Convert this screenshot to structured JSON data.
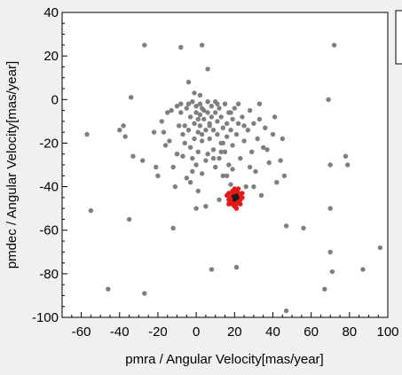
{
  "chart_data": {
    "type": "scatter",
    "title": "",
    "xlabel": "pmra / Angular Velocity[mas/year]",
    "ylabel": "pmdec / Angular Velocity[mas/year]",
    "xlim": [
      -70,
      100
    ],
    "ylim": [
      -100,
      40
    ],
    "x_ticks": [
      -60,
      -40,
      -20,
      0,
      20,
      40,
      60,
      80,
      100
    ],
    "y_ticks": [
      -100,
      -80,
      -60,
      -40,
      -20,
      0,
      20,
      40
    ],
    "grid": false,
    "legend": "top-right (partially visible, empty)",
    "colors": {
      "background": "#ffffff",
      "frame": "#f0f0f0",
      "field": "#7f7f7f",
      "member": "#e41a1a",
      "member_core": "#1a1a1a"
    },
    "series": [
      {
        "color": "#7f7f7f",
        "points": [
          [
            -57,
            -16
          ],
          [
            -55,
            -51
          ],
          [
            -46,
            -87
          ],
          [
            -40,
            -14
          ],
          [
            -38,
            -12
          ],
          [
            -37,
            -17
          ],
          [
            -35,
            -55
          ],
          [
            -34,
            1
          ],
          [
            -33,
            -26
          ],
          [
            -28,
            -28
          ],
          [
            -27,
            25
          ],
          [
            -27,
            -89
          ],
          [
            -22,
            -15
          ],
          [
            -21,
            -31
          ],
          [
            -20,
            -35
          ],
          [
            -18,
            -10
          ],
          [
            -17,
            -15
          ],
          [
            -16,
            -21
          ],
          [
            -14,
            -19
          ],
          [
            -13,
            -5
          ],
          [
            -12,
            -31
          ],
          [
            -12,
            -59
          ],
          [
            -10,
            -25
          ],
          [
            -9,
            -12
          ],
          [
            -8,
            24
          ],
          [
            -8,
            -6
          ],
          [
            -7,
            -16
          ],
          [
            -6,
            -20
          ],
          [
            -5,
            -4
          ],
          [
            -5,
            -36
          ],
          [
            -4,
            -2
          ],
          [
            -4,
            -14
          ],
          [
            -3,
            -8
          ],
          [
            -3,
            -22
          ],
          [
            -2,
            -1
          ],
          [
            -2,
            -27
          ],
          [
            -1,
            -11
          ],
          [
            -1,
            -18
          ],
          [
            0,
            -3
          ],
          [
            0,
            -6
          ],
          [
            0,
            -30
          ],
          [
            0,
            -50
          ],
          [
            1,
            -9
          ],
          [
            1,
            -15
          ],
          [
            1,
            -24
          ],
          [
            2,
            2
          ],
          [
            2,
            -2
          ],
          [
            2,
            -7
          ],
          [
            2,
            -12
          ],
          [
            3,
            -19
          ],
          [
            3,
            25
          ],
          [
            3,
            -4
          ],
          [
            3,
            -34
          ],
          [
            4,
            -5
          ],
          [
            4,
            -9
          ],
          [
            5,
            -14
          ],
          [
            5,
            -49
          ],
          [
            6,
            -1
          ],
          [
            6,
            -6
          ],
          [
            6,
            -25
          ],
          [
            7,
            -11
          ],
          [
            7,
            -18
          ],
          [
            8,
            -3
          ],
          [
            8,
            -8
          ],
          [
            8,
            -78
          ],
          [
            9,
            -14
          ],
          [
            9,
            -23
          ],
          [
            10,
            -1
          ],
          [
            10,
            -6
          ],
          [
            10,
            -31
          ],
          [
            11,
            -10
          ],
          [
            11,
            -16
          ],
          [
            12,
            -4
          ],
          [
            12,
            -27
          ],
          [
            13,
            -8
          ],
          [
            13,
            -20
          ],
          [
            14,
            -13
          ],
          [
            14,
            -35
          ],
          [
            15,
            -2
          ],
          [
            15,
            -24
          ],
          [
            16,
            -11
          ],
          [
            16,
            -17
          ],
          [
            17,
            -6
          ],
          [
            17,
            -30
          ],
          [
            18,
            -14
          ],
          [
            18,
            -39
          ],
          [
            19,
            -9
          ],
          [
            19,
            -21
          ],
          [
            20,
            -4
          ],
          [
            21,
            -16
          ],
          [
            21,
            -77
          ],
          [
            22,
            -11
          ],
          [
            23,
            -27
          ],
          [
            24,
            -8
          ],
          [
            25,
            -19
          ],
          [
            26,
            -40
          ],
          [
            27,
            -14
          ],
          [
            28,
            -5
          ],
          [
            29,
            -24
          ],
          [
            30,
            -11
          ],
          [
            31,
            -33
          ],
          [
            32,
            -18
          ],
          [
            33,
            -9
          ],
          [
            34,
            -44
          ],
          [
            35,
            -22
          ],
          [
            36,
            -13
          ],
          [
            38,
            -29
          ],
          [
            40,
            -16
          ],
          [
            42,
            -38
          ],
          [
            44,
            -28
          ],
          [
            45,
            -18
          ],
          [
            46,
            -35
          ],
          [
            47,
            -58
          ],
          [
            47,
            -97
          ],
          [
            56,
            -59
          ],
          [
            67,
            -87
          ],
          [
            69,
            0
          ],
          [
            70,
            -30
          ],
          [
            70,
            -50
          ],
          [
            70,
            -70
          ],
          [
            71,
            -79
          ],
          [
            72,
            25
          ],
          [
            78,
            -26
          ],
          [
            79,
            -30
          ],
          [
            87,
            -78
          ],
          [
            96,
            -68
          ],
          [
            -2,
            -33
          ],
          [
            -6,
            -12
          ],
          [
            1,
            -42
          ],
          [
            6,
            14
          ],
          [
            -4,
            8
          ],
          [
            11,
            -2
          ],
          [
            18,
            -6
          ],
          [
            -1,
            3
          ],
          [
            7,
            -12
          ],
          [
            14,
            -20
          ],
          [
            22,
            -2
          ],
          [
            -10,
            -3
          ],
          [
            3,
            -16
          ],
          [
            9,
            -27
          ],
          [
            25,
            -12
          ],
          [
            -7,
            -26
          ],
          [
            16,
            -35
          ],
          [
            12,
            -46
          ],
          [
            -15,
            -6
          ],
          [
            28,
            -31
          ],
          [
            33,
            -2
          ],
          [
            41,
            -8
          ],
          [
            37,
            -23
          ],
          [
            -11,
            -40
          ],
          [
            5,
            -28
          ],
          [
            19,
            -32
          ],
          [
            -3,
            -38
          ],
          [
            13,
            -24
          ],
          [
            24,
            -45
          ],
          [
            30,
            -40
          ],
          [
            -8,
            -2
          ]
        ]
      },
      {
        "color": "#e41a1a",
        "points": [
          [
            16,
            -44
          ],
          [
            17,
            -46
          ],
          [
            17,
            -43
          ],
          [
            18,
            -45
          ],
          [
            18,
            -47
          ],
          [
            19,
            -42
          ],
          [
            19,
            -44
          ],
          [
            19,
            -46
          ],
          [
            20,
            -43
          ],
          [
            20,
            -45
          ],
          [
            20,
            -47
          ],
          [
            20,
            -49
          ],
          [
            21,
            -42
          ],
          [
            21,
            -44
          ],
          [
            21,
            -46
          ],
          [
            21,
            -48
          ],
          [
            22,
            -43
          ],
          [
            22,
            -45
          ],
          [
            22,
            -47
          ],
          [
            23,
            -44
          ],
          [
            23,
            -46
          ],
          [
            24,
            -45
          ],
          [
            18,
            -43
          ],
          [
            22,
            -41
          ],
          [
            19,
            -48
          ],
          [
            23,
            -48
          ],
          [
            21,
            -50
          ],
          [
            17,
            -48
          ],
          [
            24,
            -43
          ],
          [
            20,
            -41
          ]
        ]
      },
      {
        "color": "#1a1a1a",
        "points": [
          [
            19.5,
            -44.5
          ],
          [
            20.5,
            -45.5
          ],
          [
            21,
            -44
          ],
          [
            20,
            -46
          ],
          [
            21.5,
            -45
          ]
        ]
      }
    ]
  }
}
